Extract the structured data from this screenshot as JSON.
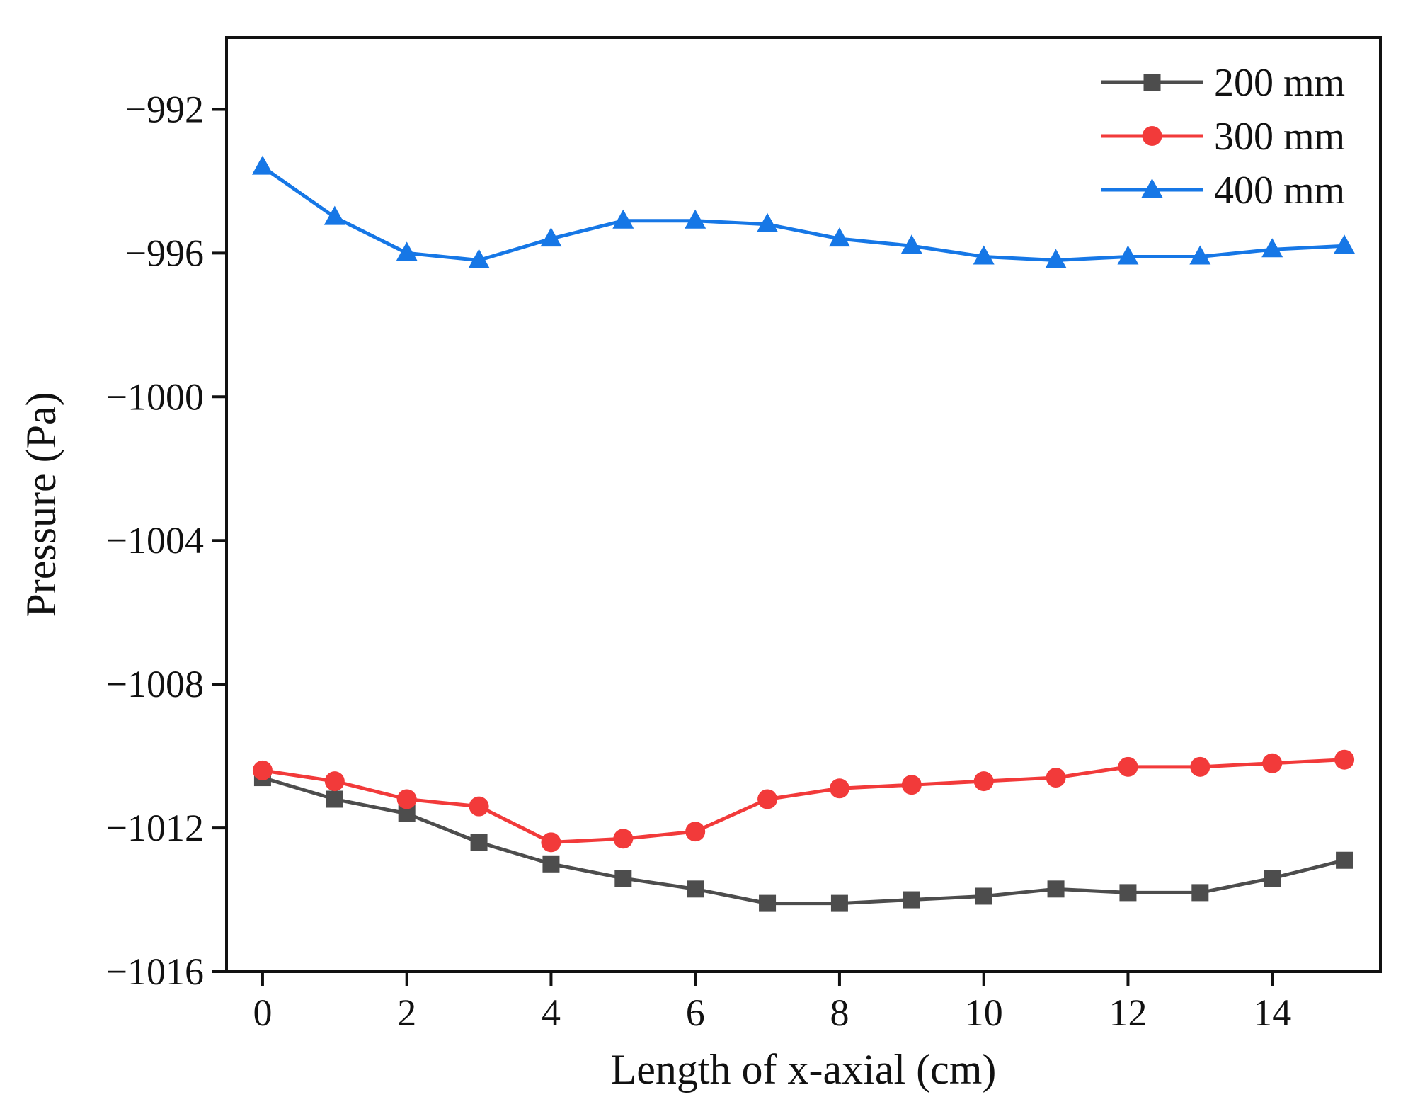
{
  "chart_data": {
    "type": "line",
    "xlabel": "Length of x-axial (cm)",
    "ylabel": "Pressure (Pa)",
    "xlim": [
      -0.5,
      15.5
    ],
    "ylim": [
      -1016,
      -990
    ],
    "xticks": [
      0,
      2,
      4,
      6,
      8,
      10,
      12,
      14
    ],
    "yticks": [
      -992,
      -996,
      -1000,
      -1004,
      -1008,
      -1012,
      -1016
    ],
    "ytick_labels": [
      "−992",
      "−996",
      "−1000",
      "−1004",
      "−1008",
      "−1012",
      "−1016"
    ],
    "grid": false,
    "legend_position": "top-right",
    "x": [
      0,
      1,
      2,
      3,
      4,
      5,
      6,
      7,
      8,
      9,
      10,
      11,
      12,
      13,
      14,
      15
    ],
    "series": [
      {
        "name": "200 mm",
        "color": "#4d4d4d",
        "marker": "square",
        "values": [
          -1010.6,
          -1011.2,
          -1011.6,
          -1012.4,
          -1013.0,
          -1013.4,
          -1013.7,
          -1014.1,
          -1014.1,
          -1014.0,
          -1013.9,
          -1013.7,
          -1013.8,
          -1013.8,
          -1013.4,
          -1012.9
        ]
      },
      {
        "name": "300 mm",
        "color": "#f23a3a",
        "marker": "circle",
        "values": [
          -1010.4,
          -1010.7,
          -1011.2,
          -1011.4,
          -1012.4,
          -1012.3,
          -1012.1,
          -1011.2,
          -1010.9,
          -1010.8,
          -1010.7,
          -1010.6,
          -1010.3,
          -1010.3,
          -1010.2,
          -1010.1
        ]
      },
      {
        "name": "400 mm",
        "color": "#1677e6",
        "marker": "triangle",
        "values": [
          -993.6,
          -995.0,
          -996.0,
          -996.2,
          -995.6,
          -995.1,
          -995.1,
          -995.2,
          -995.6,
          -995.8,
          -996.1,
          -996.2,
          -996.1,
          -996.1,
          -995.9,
          -995.8
        ]
      }
    ]
  }
}
